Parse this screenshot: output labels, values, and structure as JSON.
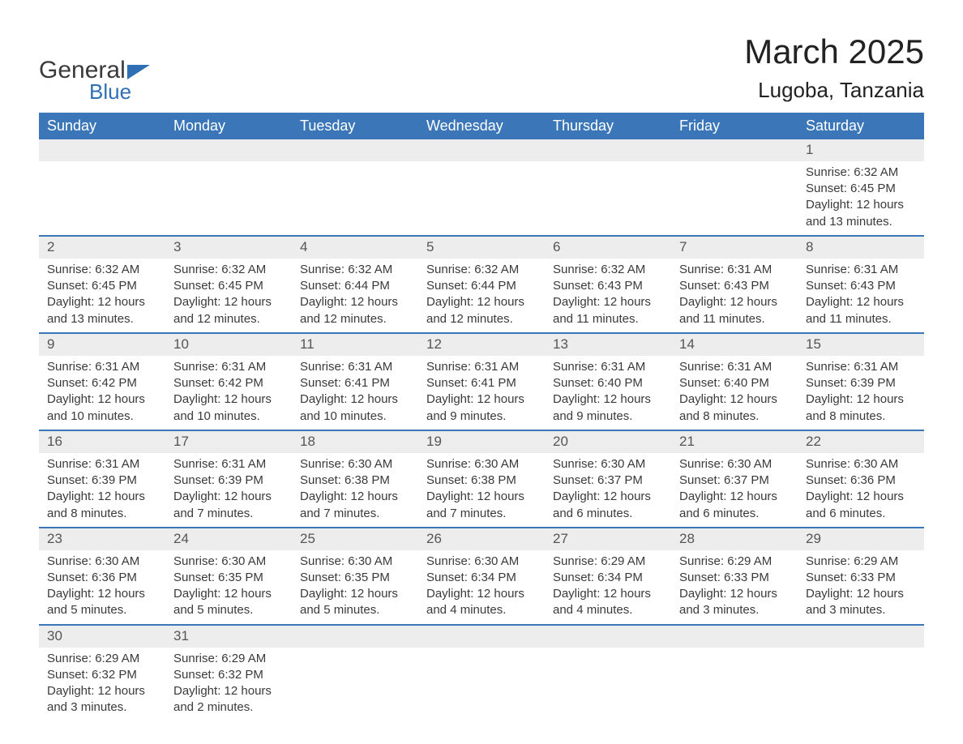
{
  "logo": {
    "line1": "General",
    "line2": "Blue"
  },
  "header": {
    "month": "March 2025",
    "location": "Lugoba, Tanzania"
  },
  "colors": {
    "header_bg": "#3b77b8",
    "header_text": "#ffffff",
    "daynum_bg": "#ededed",
    "row_border": "#3b77b8",
    "text": "#3a3a3a",
    "logo_blue": "#2f6fb3"
  },
  "typography": {
    "month_fontsize": 42,
    "location_fontsize": 26,
    "dayheader_fontsize": 18,
    "cell_fontsize": 15
  },
  "dayHeaders": [
    "Sunday",
    "Monday",
    "Tuesday",
    "Wednesday",
    "Thursday",
    "Friday",
    "Saturday"
  ],
  "weeks": [
    [
      null,
      null,
      null,
      null,
      null,
      null,
      {
        "n": "1",
        "sr": "Sunrise: 6:32 AM",
        "ss": "Sunset: 6:45 PM",
        "dl": "Daylight: 12 hours and 13 minutes."
      }
    ],
    [
      {
        "n": "2",
        "sr": "Sunrise: 6:32 AM",
        "ss": "Sunset: 6:45 PM",
        "dl": "Daylight: 12 hours and 13 minutes."
      },
      {
        "n": "3",
        "sr": "Sunrise: 6:32 AM",
        "ss": "Sunset: 6:45 PM",
        "dl": "Daylight: 12 hours and 12 minutes."
      },
      {
        "n": "4",
        "sr": "Sunrise: 6:32 AM",
        "ss": "Sunset: 6:44 PM",
        "dl": "Daylight: 12 hours and 12 minutes."
      },
      {
        "n": "5",
        "sr": "Sunrise: 6:32 AM",
        "ss": "Sunset: 6:44 PM",
        "dl": "Daylight: 12 hours and 12 minutes."
      },
      {
        "n": "6",
        "sr": "Sunrise: 6:32 AM",
        "ss": "Sunset: 6:43 PM",
        "dl": "Daylight: 12 hours and 11 minutes."
      },
      {
        "n": "7",
        "sr": "Sunrise: 6:31 AM",
        "ss": "Sunset: 6:43 PM",
        "dl": "Daylight: 12 hours and 11 minutes."
      },
      {
        "n": "8",
        "sr": "Sunrise: 6:31 AM",
        "ss": "Sunset: 6:43 PM",
        "dl": "Daylight: 12 hours and 11 minutes."
      }
    ],
    [
      {
        "n": "9",
        "sr": "Sunrise: 6:31 AM",
        "ss": "Sunset: 6:42 PM",
        "dl": "Daylight: 12 hours and 10 minutes."
      },
      {
        "n": "10",
        "sr": "Sunrise: 6:31 AM",
        "ss": "Sunset: 6:42 PM",
        "dl": "Daylight: 12 hours and 10 minutes."
      },
      {
        "n": "11",
        "sr": "Sunrise: 6:31 AM",
        "ss": "Sunset: 6:41 PM",
        "dl": "Daylight: 12 hours and 10 minutes."
      },
      {
        "n": "12",
        "sr": "Sunrise: 6:31 AM",
        "ss": "Sunset: 6:41 PM",
        "dl": "Daylight: 12 hours and 9 minutes."
      },
      {
        "n": "13",
        "sr": "Sunrise: 6:31 AM",
        "ss": "Sunset: 6:40 PM",
        "dl": "Daylight: 12 hours and 9 minutes."
      },
      {
        "n": "14",
        "sr": "Sunrise: 6:31 AM",
        "ss": "Sunset: 6:40 PM",
        "dl": "Daylight: 12 hours and 8 minutes."
      },
      {
        "n": "15",
        "sr": "Sunrise: 6:31 AM",
        "ss": "Sunset: 6:39 PM",
        "dl": "Daylight: 12 hours and 8 minutes."
      }
    ],
    [
      {
        "n": "16",
        "sr": "Sunrise: 6:31 AM",
        "ss": "Sunset: 6:39 PM",
        "dl": "Daylight: 12 hours and 8 minutes."
      },
      {
        "n": "17",
        "sr": "Sunrise: 6:31 AM",
        "ss": "Sunset: 6:39 PM",
        "dl": "Daylight: 12 hours and 7 minutes."
      },
      {
        "n": "18",
        "sr": "Sunrise: 6:30 AM",
        "ss": "Sunset: 6:38 PM",
        "dl": "Daylight: 12 hours and 7 minutes."
      },
      {
        "n": "19",
        "sr": "Sunrise: 6:30 AM",
        "ss": "Sunset: 6:38 PM",
        "dl": "Daylight: 12 hours and 7 minutes."
      },
      {
        "n": "20",
        "sr": "Sunrise: 6:30 AM",
        "ss": "Sunset: 6:37 PM",
        "dl": "Daylight: 12 hours and 6 minutes."
      },
      {
        "n": "21",
        "sr": "Sunrise: 6:30 AM",
        "ss": "Sunset: 6:37 PM",
        "dl": "Daylight: 12 hours and 6 minutes."
      },
      {
        "n": "22",
        "sr": "Sunrise: 6:30 AM",
        "ss": "Sunset: 6:36 PM",
        "dl": "Daylight: 12 hours and 6 minutes."
      }
    ],
    [
      {
        "n": "23",
        "sr": "Sunrise: 6:30 AM",
        "ss": "Sunset: 6:36 PM",
        "dl": "Daylight: 12 hours and 5 minutes."
      },
      {
        "n": "24",
        "sr": "Sunrise: 6:30 AM",
        "ss": "Sunset: 6:35 PM",
        "dl": "Daylight: 12 hours and 5 minutes."
      },
      {
        "n": "25",
        "sr": "Sunrise: 6:30 AM",
        "ss": "Sunset: 6:35 PM",
        "dl": "Daylight: 12 hours and 5 minutes."
      },
      {
        "n": "26",
        "sr": "Sunrise: 6:30 AM",
        "ss": "Sunset: 6:34 PM",
        "dl": "Daylight: 12 hours and 4 minutes."
      },
      {
        "n": "27",
        "sr": "Sunrise: 6:29 AM",
        "ss": "Sunset: 6:34 PM",
        "dl": "Daylight: 12 hours and 4 minutes."
      },
      {
        "n": "28",
        "sr": "Sunrise: 6:29 AM",
        "ss": "Sunset: 6:33 PM",
        "dl": "Daylight: 12 hours and 3 minutes."
      },
      {
        "n": "29",
        "sr": "Sunrise: 6:29 AM",
        "ss": "Sunset: 6:33 PM",
        "dl": "Daylight: 12 hours and 3 minutes."
      }
    ],
    [
      {
        "n": "30",
        "sr": "Sunrise: 6:29 AM",
        "ss": "Sunset: 6:32 PM",
        "dl": "Daylight: 12 hours and 3 minutes."
      },
      {
        "n": "31",
        "sr": "Sunrise: 6:29 AM",
        "ss": "Sunset: 6:32 PM",
        "dl": "Daylight: 12 hours and 2 minutes."
      },
      null,
      null,
      null,
      null,
      null
    ]
  ]
}
